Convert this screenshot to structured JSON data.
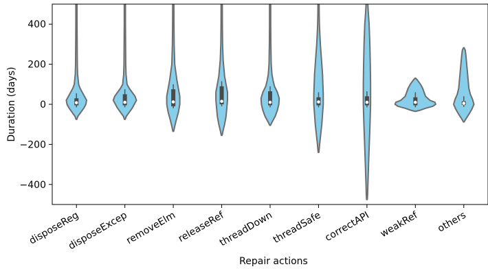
{
  "chart_data": {
    "type": "violin",
    "xlabel": "Repair actions",
    "ylabel": "Duration (days)",
    "ylim": [
      -500,
      500
    ],
    "yticks": [
      -400,
      -200,
      0,
      200,
      400
    ],
    "fill_color": "#87ceeb",
    "edge_color": "#6e6e6e",
    "categories": [
      "disposeReg",
      "disposeExcep",
      "removeElm",
      "releaseRef",
      "threadDown",
      "threadSafe",
      "correctAPI",
      "weakRef",
      "others"
    ],
    "violins": [
      {
        "name": "disposeReg",
        "profile": [
          [
            -75,
            0.5
          ],
          [
            -60,
            2
          ],
          [
            -40,
            6
          ],
          [
            -20,
            10
          ],
          [
            0,
            13
          ],
          [
            20,
            14
          ],
          [
            40,
            11
          ],
          [
            60,
            8
          ],
          [
            80,
            5
          ],
          [
            100,
            3
          ],
          [
            150,
            1.6
          ],
          [
            200,
            1.2
          ],
          [
            300,
            1
          ],
          [
            400,
            0.8
          ],
          [
            500,
            0.8
          ]
        ],
        "box": [
          -5,
          30
        ],
        "median": 8
      },
      {
        "name": "disposeExcep",
        "profile": [
          [
            -75,
            0.5
          ],
          [
            -60,
            2
          ],
          [
            -40,
            6
          ],
          [
            -20,
            10
          ],
          [
            0,
            13
          ],
          [
            20,
            16
          ],
          [
            40,
            14
          ],
          [
            60,
            10
          ],
          [
            80,
            6
          ],
          [
            100,
            3
          ],
          [
            150,
            1.6
          ],
          [
            200,
            1.2
          ],
          [
            300,
            1
          ],
          [
            400,
            0.8
          ],
          [
            500,
            0.8
          ]
        ],
        "box": [
          -5,
          50
        ],
        "median": 10
      },
      {
        "name": "removeElm",
        "profile": [
          [
            -135,
            0.5
          ],
          [
            -110,
            2
          ],
          [
            -80,
            4
          ],
          [
            -40,
            7
          ],
          [
            0,
            9
          ],
          [
            40,
            9
          ],
          [
            80,
            7
          ],
          [
            120,
            5
          ],
          [
            160,
            3.5
          ],
          [
            200,
            2
          ],
          [
            300,
            1.2
          ],
          [
            400,
            0.9
          ],
          [
            500,
            0.8
          ]
        ],
        "box": [
          -10,
          75
        ],
        "median": 12
      },
      {
        "name": "releaseRef",
        "profile": [
          [
            -155,
            0.5
          ],
          [
            -130,
            2
          ],
          [
            -100,
            4
          ],
          [
            -60,
            6
          ],
          [
            -20,
            7
          ],
          [
            20,
            8
          ],
          [
            60,
            8
          ],
          [
            100,
            6
          ],
          [
            140,
            4
          ],
          [
            180,
            3
          ],
          [
            220,
            2
          ],
          [
            300,
            1.2
          ],
          [
            400,
            0.9
          ],
          [
            500,
            0.8
          ]
        ],
        "box": [
          0,
          90
        ],
        "median": 15
      },
      {
        "name": "threadDown",
        "profile": [
          [
            -105,
            0.5
          ],
          [
            -90,
            2.5
          ],
          [
            -60,
            7
          ],
          [
            -30,
            10
          ],
          [
            0,
            12
          ],
          [
            30,
            12.5
          ],
          [
            60,
            10
          ],
          [
            90,
            6
          ],
          [
            120,
            4
          ],
          [
            150,
            2.5
          ],
          [
            200,
            1.5
          ],
          [
            300,
            1
          ],
          [
            400,
            0.8
          ],
          [
            500,
            0.8
          ]
        ],
        "box": [
          -5,
          65
        ],
        "median": 10
      },
      {
        "name": "threadSafe",
        "profile": [
          [
            -240,
            0.5
          ],
          [
            -200,
            1.5
          ],
          [
            -150,
            3
          ],
          [
            -100,
            4.5
          ],
          [
            -50,
            5.5
          ],
          [
            0,
            6.5
          ],
          [
            50,
            6.5
          ],
          [
            100,
            6
          ],
          [
            150,
            5.5
          ],
          [
            200,
            4.5
          ],
          [
            250,
            3.5
          ],
          [
            300,
            2.5
          ],
          [
            350,
            1.8
          ],
          [
            400,
            1.2
          ],
          [
            450,
            0.9
          ],
          [
            500,
            0.8
          ]
        ],
        "box": [
          -5,
          35
        ],
        "median": 12
      },
      {
        "name": "correctAPI",
        "profile": [
          [
            -475,
            0.5
          ],
          [
            -450,
            0.9
          ],
          [
            -400,
            1.3
          ],
          [
            -300,
            2.2
          ],
          [
            -200,
            3.2
          ],
          [
            -100,
            4.2
          ],
          [
            0,
            5
          ],
          [
            100,
            5
          ],
          [
            200,
            4.6
          ],
          [
            300,
            4
          ],
          [
            400,
            3
          ],
          [
            450,
            2
          ],
          [
            500,
            1.2
          ]
        ],
        "box": [
          -5,
          40
        ],
        "median": 10
      },
      {
        "name": "weakRef",
        "profile": [
          [
            -35,
            0.5
          ],
          [
            -30,
            6
          ],
          [
            -20,
            14
          ],
          [
            -10,
            24
          ],
          [
            0,
            28
          ],
          [
            10,
            27
          ],
          [
            20,
            20
          ],
          [
            40,
            14
          ],
          [
            60,
            12
          ],
          [
            80,
            10
          ],
          [
            100,
            7
          ],
          [
            120,
            3
          ],
          [
            130,
            0.5
          ]
        ],
        "box": [
          -5,
          35
        ],
        "median": 10
      },
      {
        "name": "others",
        "profile": [
          [
            -88,
            0.5
          ],
          [
            -75,
            2.5
          ],
          [
            -50,
            7
          ],
          [
            -25,
            11
          ],
          [
            0,
            14
          ],
          [
            25,
            12
          ],
          [
            50,
            9
          ],
          [
            80,
            7
          ],
          [
            120,
            6
          ],
          [
            160,
            5
          ],
          [
            200,
            4
          ],
          [
            240,
            3
          ],
          [
            270,
            2
          ],
          [
            282,
            0.5
          ]
        ],
        "box": [
          -3,
          15
        ],
        "median": 5
      }
    ]
  }
}
